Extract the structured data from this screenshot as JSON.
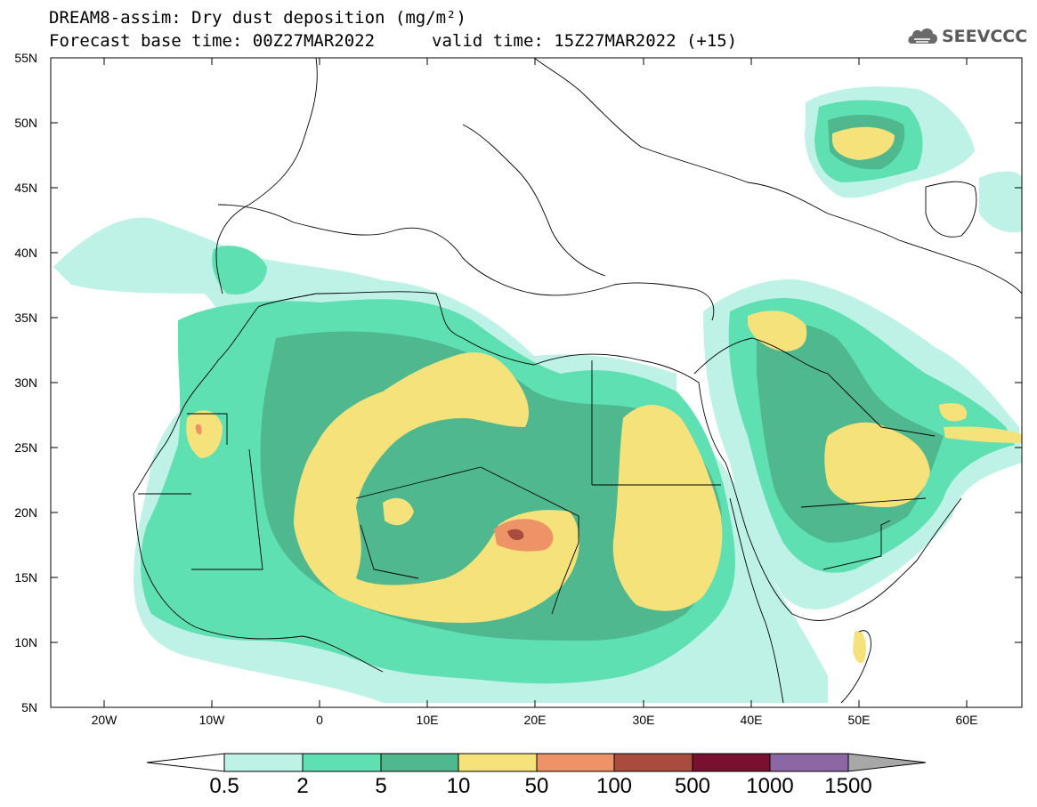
{
  "title": {
    "line1": "DREAM8-assim: Dry dust deposition (mg/m²)",
    "line2": "Forecast base time: 00Z27MAR2022",
    "valid": "valid time: 15Z27MAR2022 (+15)"
  },
  "logo": {
    "text": "SEEVCCC",
    "icon": "cloud-logo-icon"
  },
  "axes": {
    "lat_labels": [
      "55N",
      "50N",
      "45N",
      "40N",
      "35N",
      "30N",
      "25N",
      "20N",
      "15N",
      "10N",
      "5N"
    ],
    "lon_labels": [
      "20W",
      "10W",
      "0",
      "10E",
      "20E",
      "30E",
      "40E",
      "50E",
      "60E"
    ]
  },
  "colorbar": {
    "labels": [
      "0.5",
      "2",
      "5",
      "10",
      "50",
      "100",
      "500",
      "1000",
      "1500"
    ],
    "colors": [
      "#bff2e6",
      "#5fe0b3",
      "#4fb88e",
      "#f5e27a",
      "#ee9268",
      "#a94c3d",
      "#7a1030",
      "#8b68a3"
    ],
    "under_color": "#ffffff",
    "over_color": "#a8a8a8"
  }
}
